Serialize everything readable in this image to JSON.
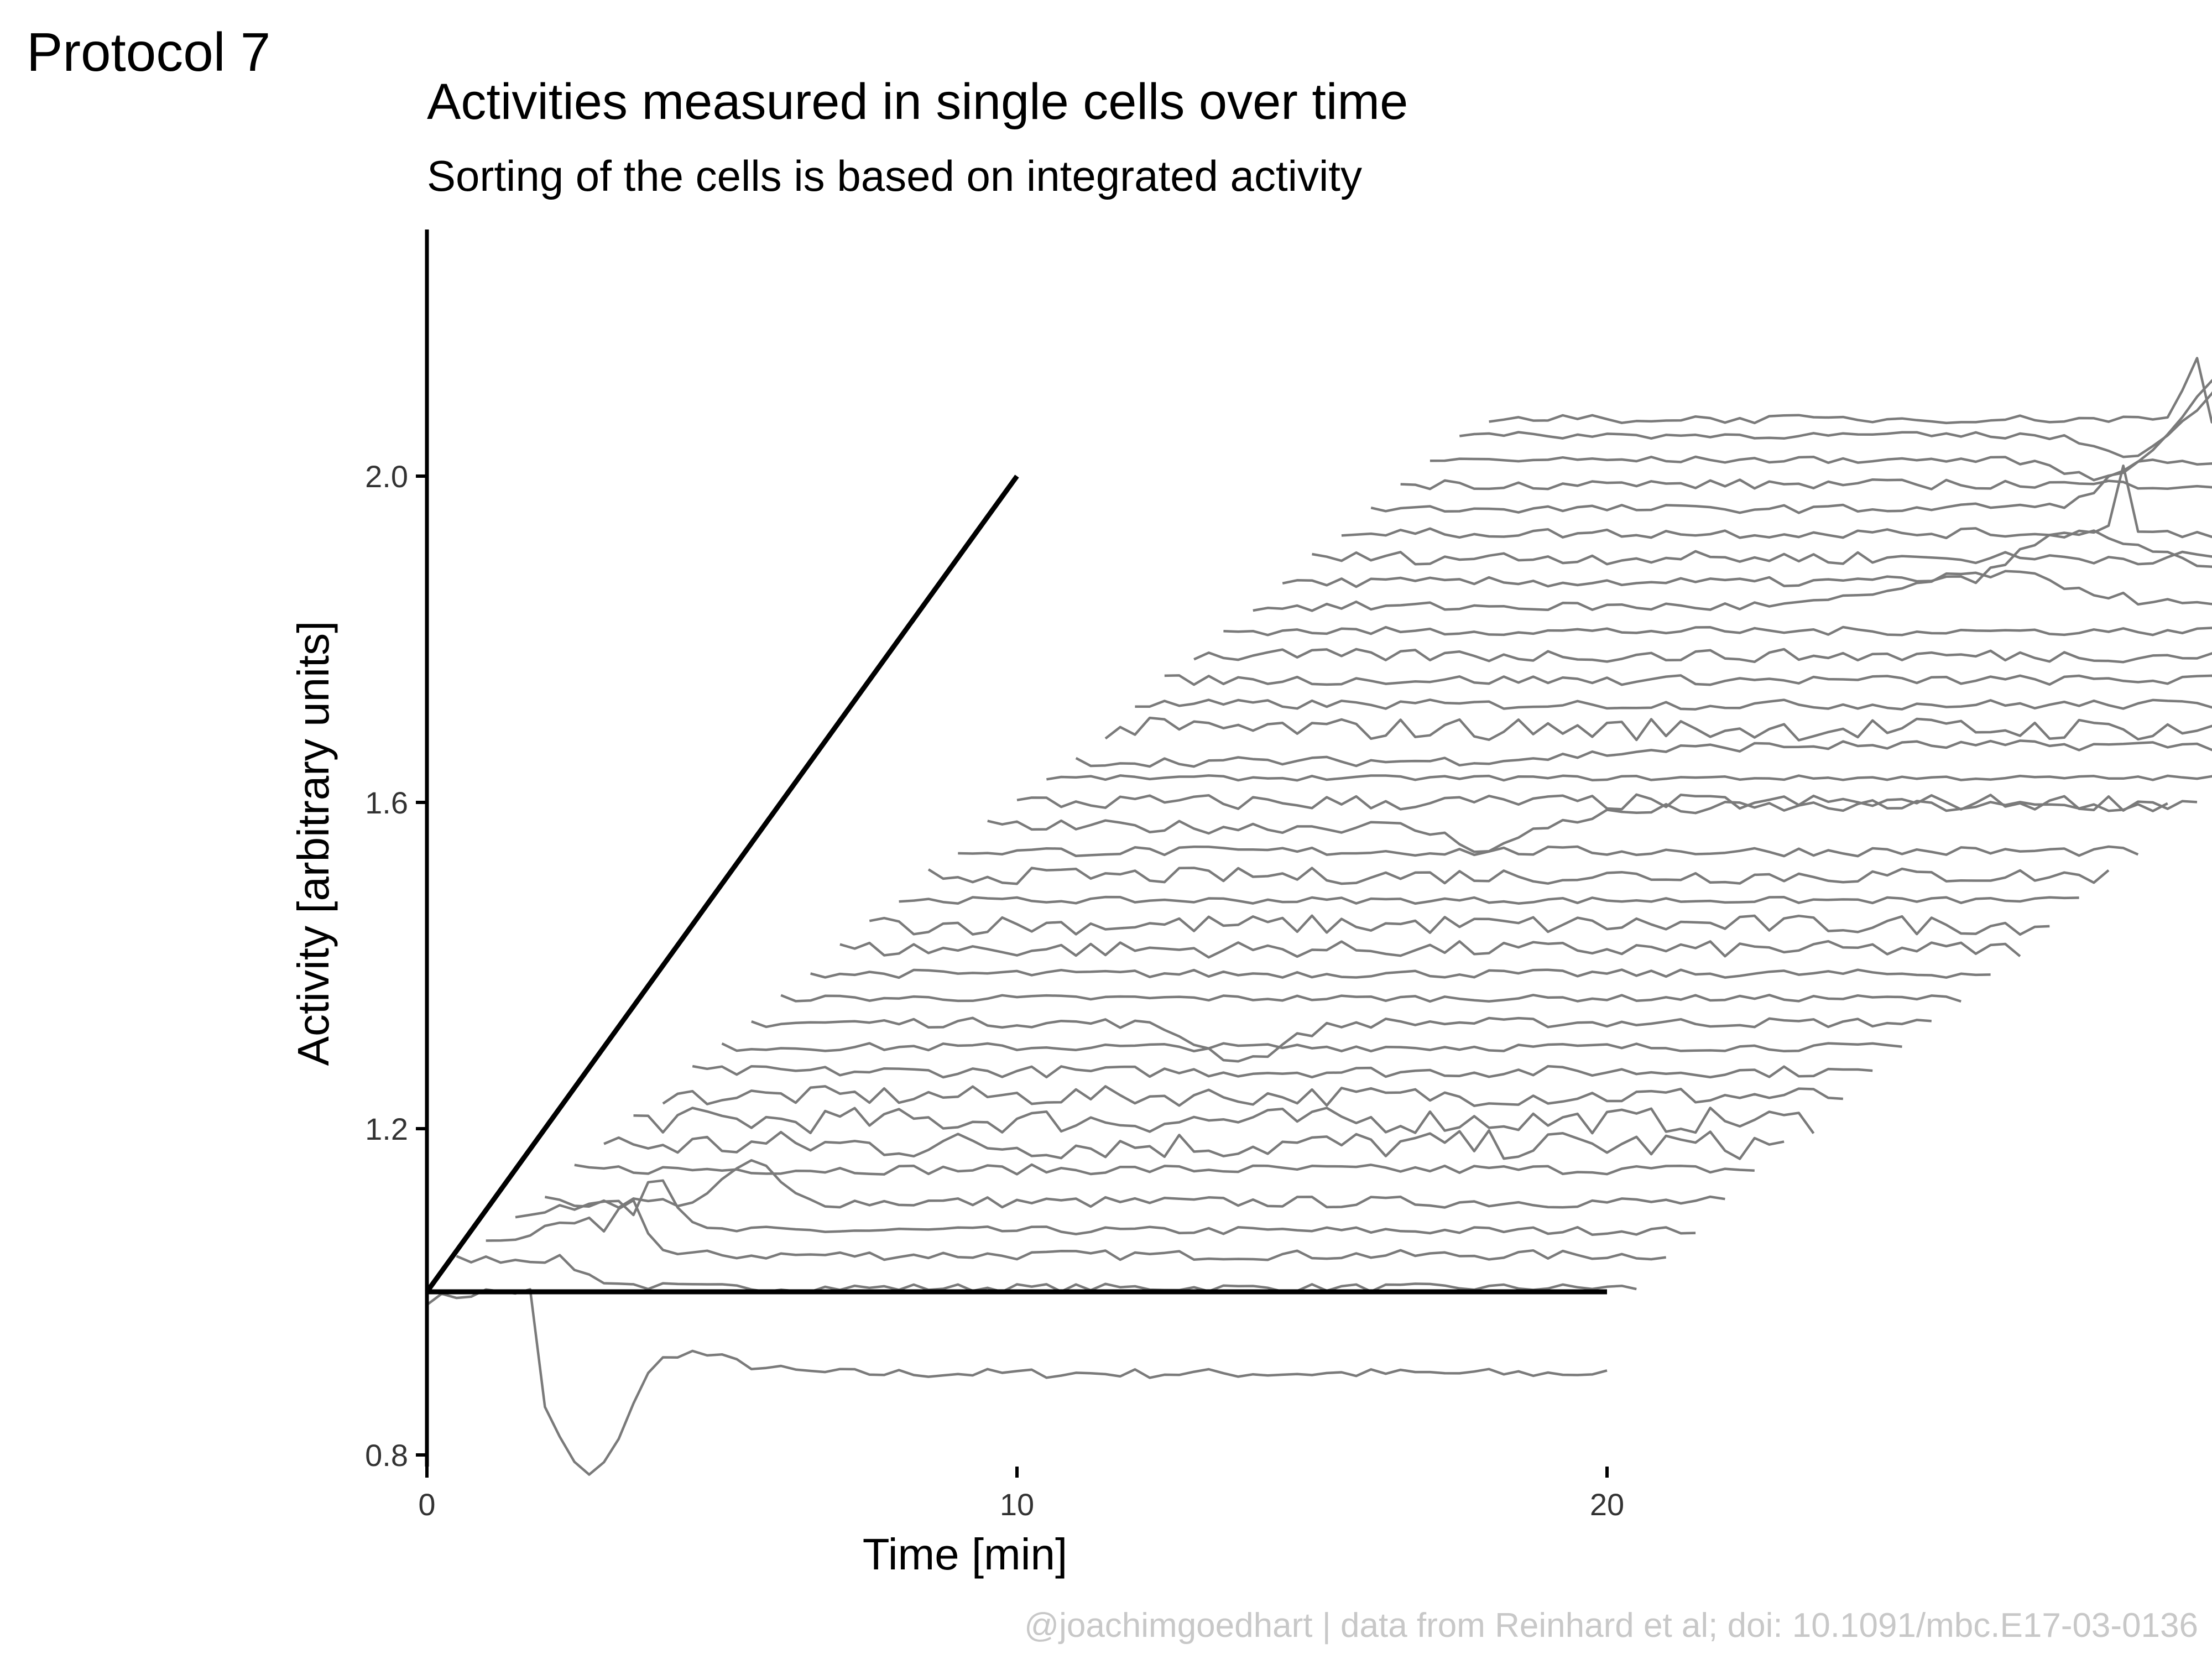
{
  "protocol_tag": "Protocol 7",
  "caption": "@joachimgoedhart | data from Reinhard et al; doi: 10.1091/mbc.E17-03-0136",
  "colors": {
    "trace": "#7a7a7a",
    "axis": "#000000",
    "caption": "#c8c8c8"
  },
  "chart_data": {
    "type": "line",
    "title": "Activities measured in single cells over time",
    "subtitle": "Sorting of the cells is based on integrated activity",
    "xlabel": "Time [min]",
    "ylabel": "Activity [arbitrary units]",
    "xlim": [
      0,
      30
    ],
    "ylim": [
      0.8,
      2.2
    ],
    "x_ticks": [
      0,
      10,
      20
    ],
    "x_tick_labels": [
      "0",
      "10",
      "20"
    ],
    "y_ticks": [
      0.8,
      1.2,
      1.6,
      2.0
    ],
    "y_tick_labels": [
      "0.8",
      "1.2",
      "1.6",
      "2.0"
    ],
    "grid": false,
    "legend": "none",
    "offset": {
      "x_per_cell": 0.5,
      "y_per_cell": 0.03
    },
    "time": {
      "start": 0,
      "end": 20,
      "step": 0.25
    },
    "guides": {
      "baseline": {
        "x": [
          0,
          20
        ],
        "y": [
          1.0,
          1.0
        ]
      },
      "diagonal": {
        "x": [
          0,
          10
        ],
        "y": [
          1.0,
          2.0
        ]
      }
    },
    "features": {
      "drop": {
        "t0": 1.9,
        "depth": 0.14,
        "tau": 3.0
      },
      "bump": {
        "t0": 2.0,
        "height": 0.07
      },
      "peak": {
        "t0": 15.1,
        "height": 0.2,
        "width": 2.0
      },
      "spike": {
        "t0": 22.4,
        "height": 0.12
      }
    },
    "series": [
      {
        "base": 0.99,
        "shape": "drop",
        "noise": 0.006
      },
      {
        "base": 1.0,
        "shape": "drop_small",
        "noise": 0.005
      },
      {
        "base": 1.0,
        "shape": "bump",
        "noise": 0.006
      },
      {
        "base": 1.0,
        "shape": "bump",
        "noise": 0.005
      },
      {
        "base": 1.0,
        "shape": "bump_small",
        "noise": 0.007
      },
      {
        "base": 1.0,
        "shape": "flat",
        "noise": 0.006
      },
      {
        "base": 1.0,
        "shape": "flat",
        "noise": 0.018
      },
      {
        "base": 1.0,
        "shape": "flat",
        "noise": 0.016
      },
      {
        "base": 1.0,
        "shape": "flat",
        "noise": 0.012
      },
      {
        "base": 1.0,
        "shape": "flat",
        "noise": 0.007
      },
      {
        "base": 1.0,
        "shape": "flat",
        "noise": 0.005
      },
      {
        "base": 1.0,
        "shape": "dip",
        "noise": 0.006
      },
      {
        "base": 1.0,
        "shape": "flat",
        "noise": 0.004
      },
      {
        "base": 1.0,
        "shape": "flat",
        "noise": 0.005
      },
      {
        "base": 1.0,
        "shape": "flat",
        "noise": 0.01
      },
      {
        "base": 1.0,
        "shape": "flat",
        "noise": 0.012
      },
      {
        "base": 1.0,
        "shape": "flat",
        "noise": 0.004
      },
      {
        "base": 1.0,
        "shape": "flat",
        "noise": 0.01
      },
      {
        "base": 1.0,
        "shape": "flat",
        "noise": 0.006
      },
      {
        "base": 1.0,
        "shape": "dip_rise",
        "noise": 0.008
      },
      {
        "base": 1.0,
        "shape": "flat",
        "noise": 0.01
      },
      {
        "base": 1.0,
        "shape": "flat",
        "noise": 0.003
      },
      {
        "base": 1.0,
        "shape": "rise",
        "noise": 0.006
      },
      {
        "base": 1.0,
        "shape": "flat",
        "noise": 0.014
      },
      {
        "base": 1.0,
        "shape": "flat",
        "noise": 0.006
      },
      {
        "base": 1.0,
        "shape": "flat",
        "noise": 0.006
      },
      {
        "base": 1.0,
        "shape": "flat",
        "noise": 0.008
      },
      {
        "base": 1.0,
        "shape": "flat",
        "noise": 0.005
      },
      {
        "base": 1.0,
        "shape": "peak_small",
        "noise": 0.006
      },
      {
        "base": 1.0,
        "shape": "peak_mid",
        "noise": 0.006
      },
      {
        "base": 1.0,
        "shape": "flat",
        "noise": 0.008
      },
      {
        "base": 1.0,
        "shape": "flat_spike",
        "noise": 0.006
      },
      {
        "base": 1.0,
        "shape": "peak_mid",
        "noise": 0.005
      },
      {
        "base": 1.0,
        "shape": "flat",
        "noise": 0.006
      },
      {
        "base": 1.0,
        "shape": "peak_big",
        "noise": 0.004
      },
      {
        "base": 1.0,
        "shape": "peak_big",
        "noise": 0.004
      },
      {
        "base": 1.0,
        "shape": "flat_spike2",
        "noise": 0.005
      }
    ]
  }
}
